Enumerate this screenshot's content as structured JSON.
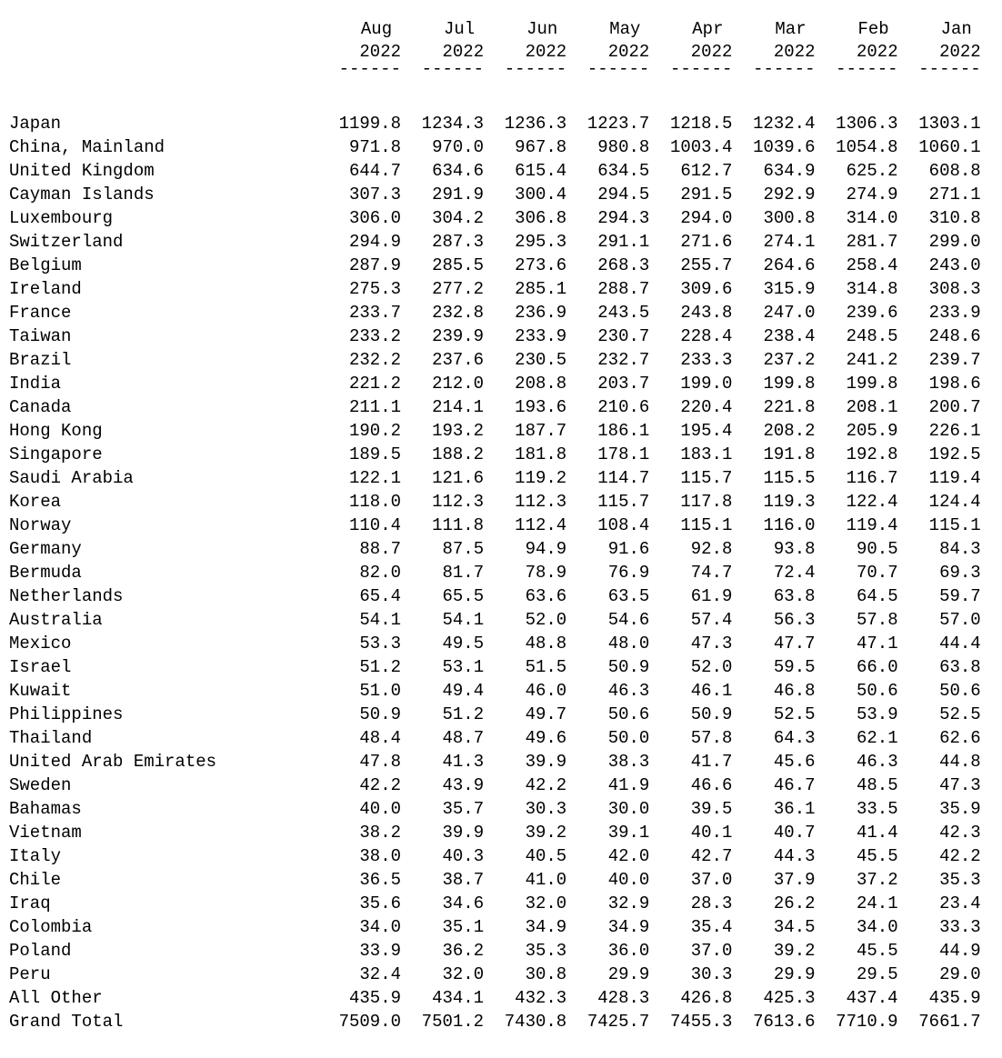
{
  "table": {
    "columns": [
      {
        "month": "Aug",
        "year": "2022",
        "rule": "------"
      },
      {
        "month": "Jul",
        "year": "2022",
        "rule": "------"
      },
      {
        "month": "Jun",
        "year": "2022",
        "rule": "------"
      },
      {
        "month": "May",
        "year": "2022",
        "rule": "------"
      },
      {
        "month": "Apr",
        "year": "2022",
        "rule": "------"
      },
      {
        "month": "Mar",
        "year": "2022",
        "rule": "------"
      },
      {
        "month": "Feb",
        "year": "2022",
        "rule": "------"
      },
      {
        "month": "Jan",
        "year": "2022",
        "rule": "------"
      }
    ],
    "rows": [
      {
        "label": "Japan",
        "values": [
          "1199.8",
          "1234.3",
          "1236.3",
          "1223.7",
          "1218.5",
          "1232.4",
          "1306.3",
          "1303.1"
        ]
      },
      {
        "label": "China, Mainland",
        "values": [
          "971.8",
          "970.0",
          "967.8",
          "980.8",
          "1003.4",
          "1039.6",
          "1054.8",
          "1060.1"
        ]
      },
      {
        "label": "United Kingdom",
        "values": [
          "644.7",
          "634.6",
          "615.4",
          "634.5",
          "612.7",
          "634.9",
          "625.2",
          "608.8"
        ]
      },
      {
        "label": "Cayman Islands",
        "values": [
          "307.3",
          "291.9",
          "300.4",
          "294.5",
          "291.5",
          "292.9",
          "274.9",
          "271.1"
        ]
      },
      {
        "label": "Luxembourg",
        "values": [
          "306.0",
          "304.2",
          "306.8",
          "294.3",
          "294.0",
          "300.8",
          "314.0",
          "310.8"
        ]
      },
      {
        "label": "Switzerland",
        "values": [
          "294.9",
          "287.3",
          "295.3",
          "291.1",
          "271.6",
          "274.1",
          "281.7",
          "299.0"
        ]
      },
      {
        "label": "Belgium",
        "values": [
          "287.9",
          "285.5",
          "273.6",
          "268.3",
          "255.7",
          "264.6",
          "258.4",
          "243.0"
        ]
      },
      {
        "label": "Ireland",
        "values": [
          "275.3",
          "277.2",
          "285.1",
          "288.7",
          "309.6",
          "315.9",
          "314.8",
          "308.3"
        ]
      },
      {
        "label": "France",
        "values": [
          "233.7",
          "232.8",
          "236.9",
          "243.5",
          "243.8",
          "247.0",
          "239.6",
          "233.9"
        ]
      },
      {
        "label": "Taiwan",
        "values": [
          "233.2",
          "239.9",
          "233.9",
          "230.7",
          "228.4",
          "238.4",
          "248.5",
          "248.6"
        ]
      },
      {
        "label": "Brazil",
        "values": [
          "232.2",
          "237.6",
          "230.5",
          "232.7",
          "233.3",
          "237.2",
          "241.2",
          "239.7"
        ]
      },
      {
        "label": "India",
        "values": [
          "221.2",
          "212.0",
          "208.8",
          "203.7",
          "199.0",
          "199.8",
          "199.8",
          "198.6"
        ]
      },
      {
        "label": "Canada",
        "values": [
          "211.1",
          "214.1",
          "193.6",
          "210.6",
          "220.4",
          "221.8",
          "208.1",
          "200.7"
        ]
      },
      {
        "label": "Hong Kong",
        "values": [
          "190.2",
          "193.2",
          "187.7",
          "186.1",
          "195.4",
          "208.2",
          "205.9",
          "226.1"
        ]
      },
      {
        "label": "Singapore",
        "values": [
          "189.5",
          "188.2",
          "181.8",
          "178.1",
          "183.1",
          "191.8",
          "192.8",
          "192.5"
        ]
      },
      {
        "label": "Saudi Arabia",
        "values": [
          "122.1",
          "121.6",
          "119.2",
          "114.7",
          "115.7",
          "115.5",
          "116.7",
          "119.4"
        ]
      },
      {
        "label": "Korea",
        "values": [
          "118.0",
          "112.3",
          "112.3",
          "115.7",
          "117.8",
          "119.3",
          "122.4",
          "124.4"
        ]
      },
      {
        "label": "Norway",
        "values": [
          "110.4",
          "111.8",
          "112.4",
          "108.4",
          "115.1",
          "116.0",
          "119.4",
          "115.1"
        ]
      },
      {
        "label": "Germany",
        "values": [
          "88.7",
          "87.5",
          "94.9",
          "91.6",
          "92.8",
          "93.8",
          "90.5",
          "84.3"
        ]
      },
      {
        "label": "Bermuda",
        "values": [
          "82.0",
          "81.7",
          "78.9",
          "76.9",
          "74.7",
          "72.4",
          "70.7",
          "69.3"
        ]
      },
      {
        "label": "Netherlands",
        "values": [
          "65.4",
          "65.5",
          "63.6",
          "63.5",
          "61.9",
          "63.8",
          "64.5",
          "59.7"
        ]
      },
      {
        "label": "Australia",
        "values": [
          "54.1",
          "54.1",
          "52.0",
          "54.6",
          "57.4",
          "56.3",
          "57.8",
          "57.0"
        ]
      },
      {
        "label": "Mexico",
        "values": [
          "53.3",
          "49.5",
          "48.8",
          "48.0",
          "47.3",
          "47.7",
          "47.1",
          "44.4"
        ]
      },
      {
        "label": "Israel",
        "values": [
          "51.2",
          "53.1",
          "51.5",
          "50.9",
          "52.0",
          "59.5",
          "66.0",
          "63.8"
        ]
      },
      {
        "label": "Kuwait",
        "values": [
          "51.0",
          "49.4",
          "46.0",
          "46.3",
          "46.1",
          "46.8",
          "50.6",
          "50.6"
        ]
      },
      {
        "label": "Philippines",
        "values": [
          "50.9",
          "51.2",
          "49.7",
          "50.6",
          "50.9",
          "52.5",
          "53.9",
          "52.5"
        ]
      },
      {
        "label": "Thailand",
        "values": [
          "48.4",
          "48.7",
          "49.6",
          "50.0",
          "57.8",
          "64.3",
          "62.1",
          "62.6"
        ]
      },
      {
        "label": "United Arab Emirates",
        "values": [
          "47.8",
          "41.3",
          "39.9",
          "38.3",
          "41.7",
          "45.6",
          "46.3",
          "44.8"
        ]
      },
      {
        "label": "Sweden",
        "values": [
          "42.2",
          "43.9",
          "42.2",
          "41.9",
          "46.6",
          "46.7",
          "48.5",
          "47.3"
        ]
      },
      {
        "label": "Bahamas",
        "values": [
          "40.0",
          "35.7",
          "30.3",
          "30.0",
          "39.5",
          "36.1",
          "33.5",
          "35.9"
        ]
      },
      {
        "label": "Vietnam",
        "values": [
          "38.2",
          "39.9",
          "39.2",
          "39.1",
          "40.1",
          "40.7",
          "41.4",
          "42.3"
        ]
      },
      {
        "label": "Italy",
        "values": [
          "38.0",
          "40.3",
          "40.5",
          "42.0",
          "42.7",
          "44.3",
          "45.5",
          "42.2"
        ]
      },
      {
        "label": "Chile",
        "values": [
          "36.5",
          "38.7",
          "41.0",
          "40.0",
          "37.0",
          "37.9",
          "37.2",
          "35.3"
        ]
      },
      {
        "label": "Iraq",
        "values": [
          "35.6",
          "34.6",
          "32.0",
          "32.9",
          "28.3",
          "26.2",
          "24.1",
          "23.4"
        ]
      },
      {
        "label": "Colombia",
        "values": [
          "34.0",
          "35.1",
          "34.9",
          "34.9",
          "35.4",
          "34.5",
          "34.0",
          "33.3"
        ]
      },
      {
        "label": "Poland",
        "values": [
          "33.9",
          "36.2",
          "35.3",
          "36.0",
          "37.0",
          "39.2",
          "45.5",
          "44.9"
        ]
      },
      {
        "label": "Peru",
        "values": [
          "32.4",
          "32.0",
          "30.8",
          "29.9",
          "30.3",
          "29.9",
          "29.5",
          "29.0"
        ]
      },
      {
        "label": "All Other",
        "values": [
          "435.9",
          "434.1",
          "432.3",
          "428.3",
          "426.8",
          "425.3",
          "437.4",
          "435.9"
        ]
      },
      {
        "label": "Grand Total",
        "values": [
          "7509.0",
          "7501.2",
          "7430.8",
          "7425.7",
          "7455.3",
          "7613.6",
          "7710.9",
          "7661.7"
        ]
      }
    ]
  }
}
